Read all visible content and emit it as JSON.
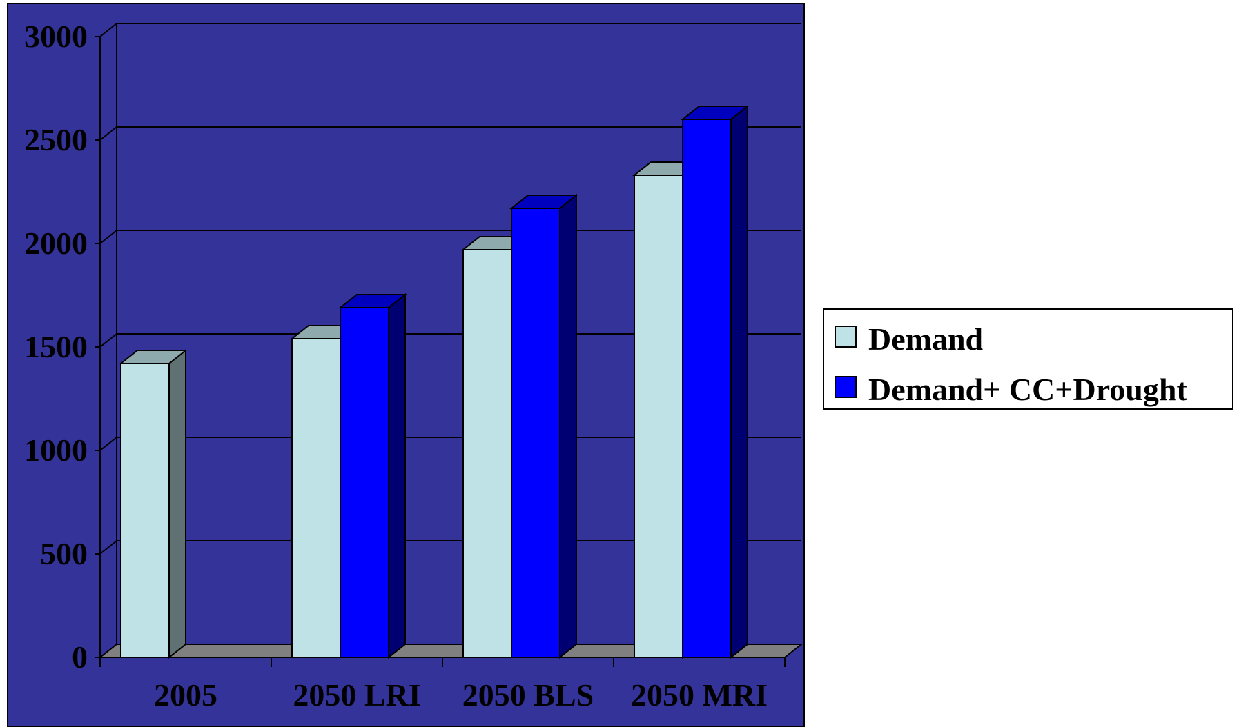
{
  "chart_data": {
    "type": "bar",
    "style": "3d-clustered-column",
    "categories": [
      "2005",
      "2050 LRI",
      "2050 BLS",
      "2050 MRI"
    ],
    "series": [
      {
        "name": "Demand",
        "values": [
          1420,
          1540,
          1970,
          2330
        ],
        "color": "#bfe2e6"
      },
      {
        "name": "Demand+ CC+Drought",
        "values": [
          null,
          1690,
          2170,
          2600
        ],
        "color": "#0000ff"
      }
    ],
    "y_ticks": [
      "0",
      "500",
      "1000",
      "1500",
      "2000",
      "2500",
      "3000"
    ],
    "ylim": [
      0,
      3000
    ],
    "grid": true,
    "legend_position": "right",
    "plot_background": "#333399",
    "floor_color": "#808080"
  }
}
